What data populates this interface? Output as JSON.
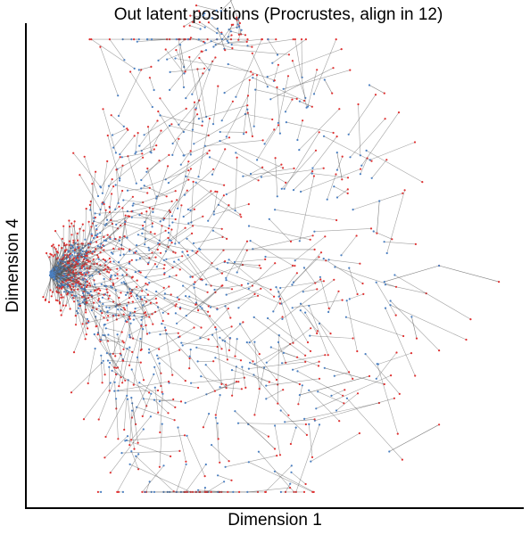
{
  "chart_data": {
    "type": "scatter",
    "title": "Out latent positions (Procrustes, align in 12)",
    "xlabel": "Dimension 1",
    "ylabel": "Dimension 4",
    "xlim": [
      0,
      10
    ],
    "ylim": [
      -4.5,
      4.5
    ],
    "x_ticks_shown": false,
    "y_ticks_shown": false,
    "grid": false,
    "legend": "none",
    "encoding": "Each node drawn as a segment from its blue endpoint to its red endpoint (displacement between aligned latent positions)",
    "colors": {
      "line": "#555555",
      "start_point": "#4a7fc1",
      "end_point": "#e03030"
    },
    "highlighted_segments": [
      {
        "from": [
          7.2,
          -0.3
        ],
        "to": [
          8.3,
          0.0
        ]
      },
      {
        "from": [
          8.3,
          0.0
        ],
        "to": [
          9.5,
          -0.3
        ]
      },
      {
        "from": [
          7.3,
          -3.45
        ],
        "to": [
          8.3,
          -2.95
        ]
      },
      {
        "from": [
          6.9,
          3.35
        ],
        "to": [
          7.2,
          3.2
        ]
      },
      {
        "from": [
          6.0,
          3.45
        ],
        "to": [
          6.15,
          3.2
        ]
      },
      {
        "from": [
          6.25,
          2.1
        ],
        "to": [
          6.35,
          1.6
        ]
      },
      {
        "from": [
          7.1,
          1.2
        ],
        "to": [
          7.05,
          0.6
        ]
      },
      {
        "from": [
          7.75,
          -0.95
        ],
        "to": [
          7.85,
          -1.35
        ]
      },
      {
        "from": [
          4.1,
          4.95
        ],
        "to": [
          4.3,
          4.5
        ]
      },
      {
        "from": [
          3.85,
          4.4
        ],
        "to": [
          4.0,
          4.0
        ]
      },
      {
        "from": [
          3.1,
          4.1
        ],
        "to": [
          3.2,
          3.6
        ]
      },
      {
        "from": [
          4.45,
          2.9
        ],
        "to": [
          4.55,
          2.4
        ]
      },
      {
        "from": [
          5.5,
          3.05
        ],
        "to": [
          5.75,
          2.95
        ]
      },
      {
        "from": [
          3.5,
          0.3
        ],
        "to": [
          5.8,
          0.3
        ]
      },
      {
        "from": [
          4.5,
          -1.8
        ],
        "to": [
          5.5,
          -2.2
        ]
      },
      {
        "from": [
          4.2,
          -2.7
        ],
        "to": [
          5.0,
          -3.4
        ]
      },
      {
        "from": [
          5.2,
          -2.9
        ],
        "to": [
          5.8,
          -2.85
        ]
      },
      {
        "from": [
          5.5,
          -2.4
        ],
        "to": [
          6.9,
          -2.05
        ]
      },
      {
        "from": [
          6.0,
          -1.9
        ],
        "to": [
          7.2,
          -2.2
        ]
      }
    ]
  }
}
